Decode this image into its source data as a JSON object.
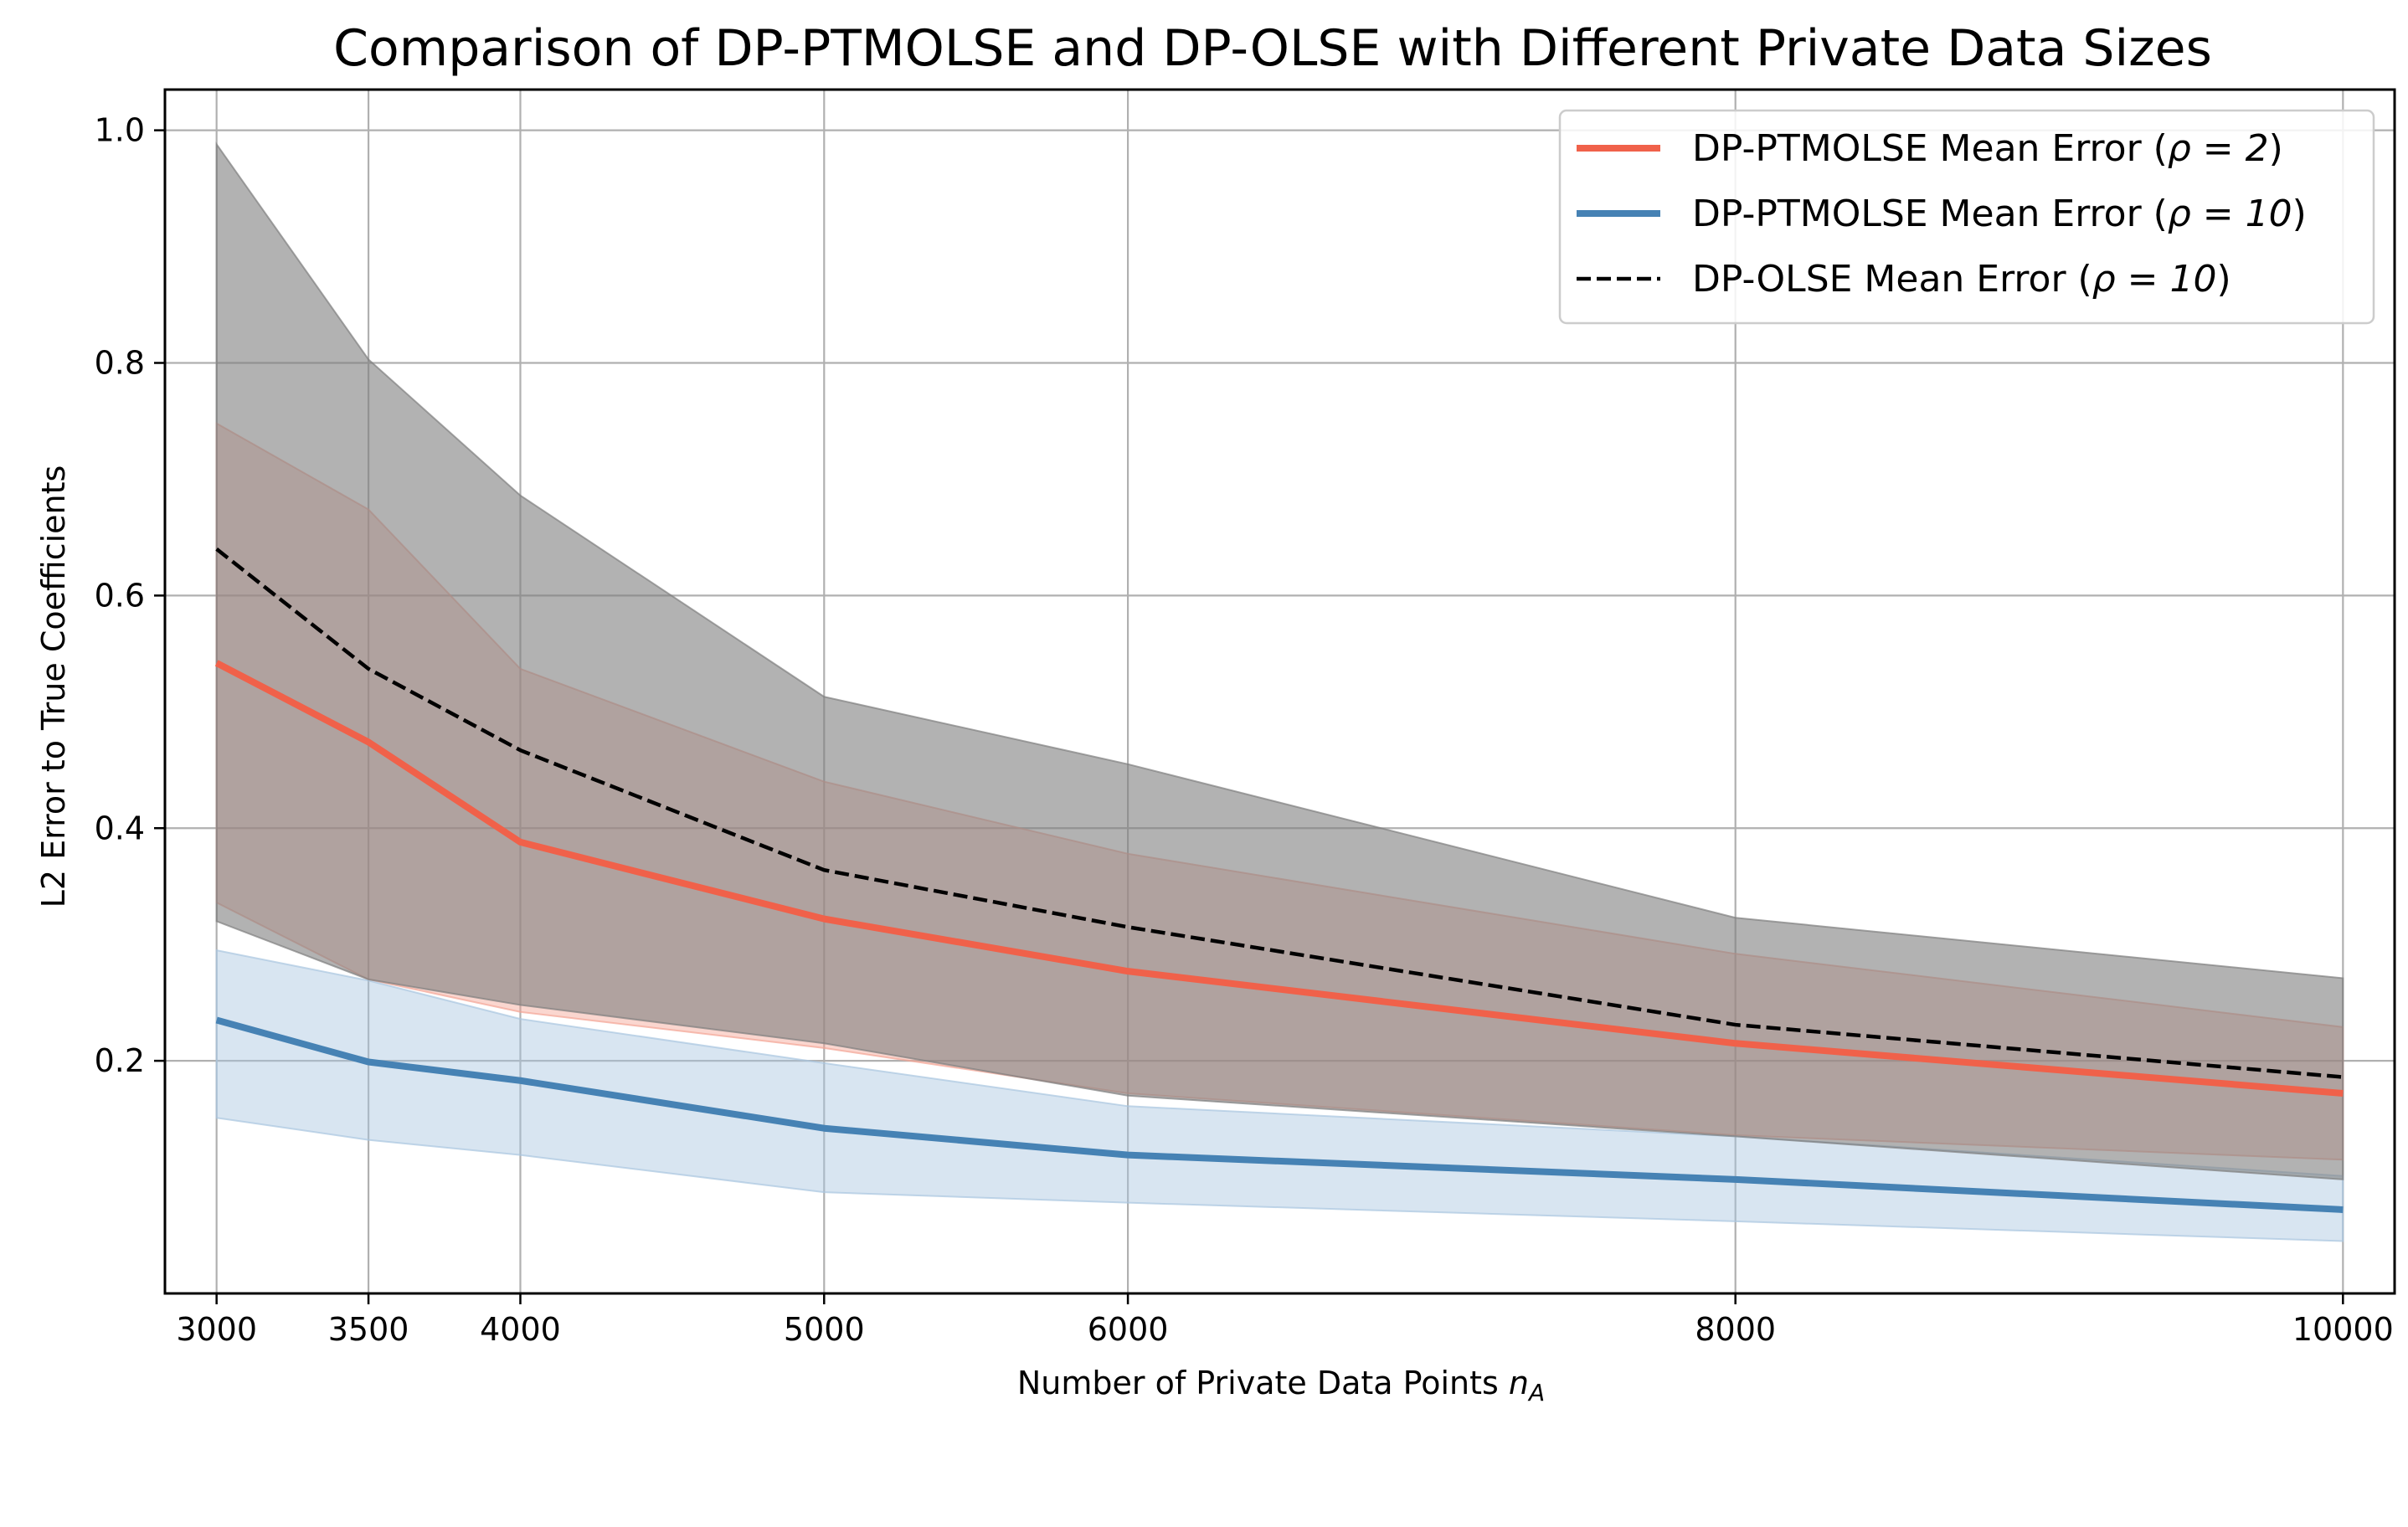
{
  "chart_data": {
    "type": "line",
    "title": "Comparison of DP-PTMOLSE and DP-OLSE with Different Private Data Sizes",
    "xlabel": "Number of Private Data Points",
    "xlabel_math": "n",
    "xlabel_math_sub": "A",
    "ylabel": "L2 Error to True Coefficients",
    "xlim": [
      2830,
      10170
    ],
    "ylim": [
      0.0,
      1.035
    ],
    "grid": true,
    "x": [
      3000,
      3500,
      4000,
      5000,
      6000,
      8000,
      10000
    ],
    "x_tick_labels": [
      "3000",
      "3500",
      "4000",
      "5000",
      "6000",
      "8000",
      "10000"
    ],
    "y_ticks": [
      0.2,
      0.4,
      0.6,
      0.8,
      1.0
    ],
    "y_tick_labels": [
      "0.2",
      "0.4",
      "0.6",
      "0.8",
      "1.0"
    ],
    "legend_position": "top-right",
    "series": [
      {
        "name": "DP-PTMOLSE Mean Error (ρ = 2)",
        "legend_prefix": "DP-PTMOLSE Mean Error (",
        "legend_math": "ρ = 2",
        "legend_suffix": ")",
        "color": "#f0614a",
        "band_color": "#f4a494",
        "style": "solid",
        "values": [
          0.542,
          0.474,
          0.388,
          0.322,
          0.277,
          0.215,
          0.172
        ],
        "band_low": [
          0.336,
          0.27,
          0.242,
          0.211,
          0.172,
          0.136,
          0.115
        ],
        "band_high": [
          0.748,
          0.674,
          0.537,
          0.44,
          0.378,
          0.292,
          0.229
        ]
      },
      {
        "name": "DP-PTMOLSE Mean Error (ρ = 10)",
        "legend_prefix": "DP-PTMOLSE Mean Error (",
        "legend_math": "ρ = 10",
        "legend_suffix": ")",
        "color": "#4682b4",
        "band_color": "#a9c6df",
        "style": "solid",
        "values": [
          0.235,
          0.199,
          0.183,
          0.142,
          0.119,
          0.098,
          0.072
        ],
        "band_low": [
          0.151,
          0.132,
          0.119,
          0.087,
          0.078,
          0.062,
          0.045
        ],
        "band_high": [
          0.295,
          0.269,
          0.236,
          0.198,
          0.161,
          0.135,
          0.101
        ]
      },
      {
        "name": "DP-OLSE Mean Error (ρ = 10)",
        "legend_prefix": "DP-OLSE Mean Error (",
        "legend_math": "ρ = 10",
        "legend_suffix": ")",
        "color": "#000000",
        "band_color": "#7f7f7f",
        "style": "dashed",
        "values": [
          0.64,
          0.537,
          0.467,
          0.364,
          0.315,
          0.231,
          0.186
        ],
        "band_low": [
          0.32,
          0.27,
          0.248,
          0.215,
          0.17,
          0.135,
          0.098
        ],
        "band_high": [
          0.988,
          0.803,
          0.686,
          0.513,
          0.455,
          0.323,
          0.271
        ]
      }
    ]
  }
}
